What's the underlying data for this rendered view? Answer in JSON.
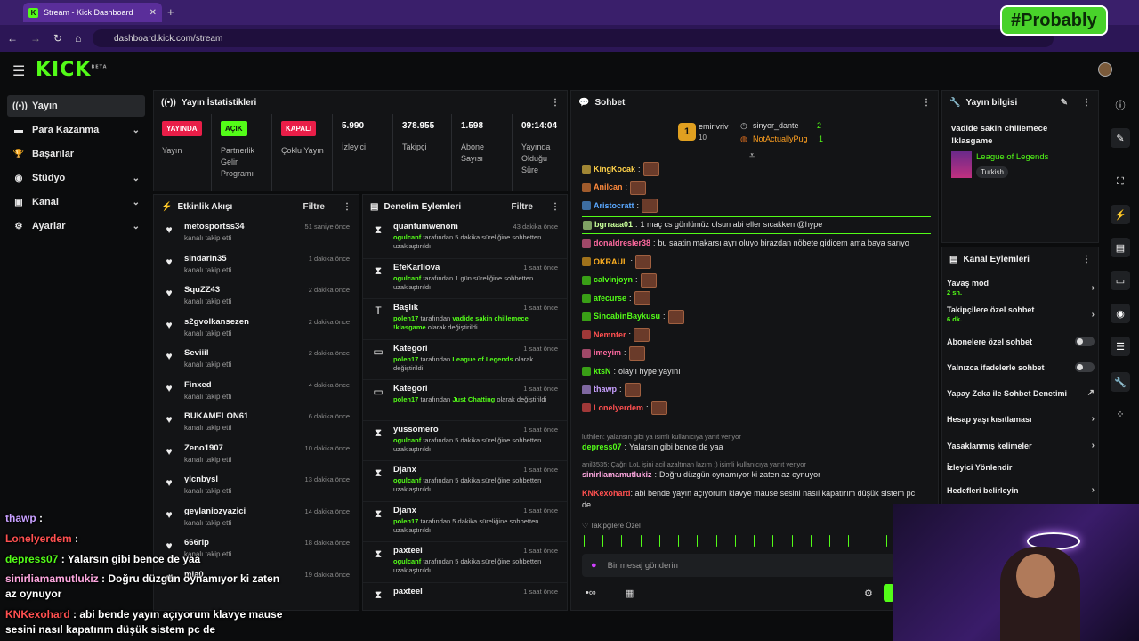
{
  "browser": {
    "tab_title": "Stream - Kick Dashboard",
    "url": "dashboard.kick.com/stream",
    "overlay_brand": "#Probably"
  },
  "app": {
    "logo": "KICK",
    "logo_sup": "BETA"
  },
  "nav": [
    {
      "label": "Yayın",
      "icon": "broadcast-icon",
      "active": true
    },
    {
      "label": "Para Kazanma",
      "icon": "money-icon",
      "chevron": true
    },
    {
      "label": "Başarılar",
      "icon": "trophy-icon"
    },
    {
      "label": "Stüdyo",
      "icon": "studio-icon",
      "chevron": true
    },
    {
      "label": "Kanal",
      "icon": "channel-icon",
      "chevron": true
    },
    {
      "label": "Ayarlar",
      "icon": "gear-icon",
      "chevron": true
    }
  ],
  "stats": {
    "title": "Yayın İstatistikleri",
    "items": [
      {
        "badge": "YAYINDA",
        "badge_color": "#e91e48",
        "label": "Yayın"
      },
      {
        "badge": "AÇIK",
        "badge_color": "#53fc18",
        "label": "Partnerlik Gelir Programı"
      },
      {
        "badge": "KAPALI",
        "badge_color": "#e91e48",
        "label": "Çoklu Yayın"
      },
      {
        "value": "5.990",
        "label": "İzleyici"
      },
      {
        "value": "378.955",
        "label": "Takipçi"
      },
      {
        "value": "1.598",
        "label": "Abone Sayısı"
      },
      {
        "value": "09:14:04",
        "label": "Yayında Olduğu Süre"
      }
    ]
  },
  "activity": {
    "title": "Etkinlik Akışı",
    "filter": "Filtre",
    "rows": [
      {
        "name": "metosportss34",
        "action": "kanalı takip etti",
        "time": "51 saniye önce"
      },
      {
        "name": "sindarin35",
        "action": "kanalı takip etti",
        "time": "1 dakika önce"
      },
      {
        "name": "SquZZ43",
        "action": "kanalı takip etti",
        "time": "2 dakika önce"
      },
      {
        "name": "s2gvolkansezen",
        "action": "kanalı takip etti",
        "time": "2 dakika önce"
      },
      {
        "name": "Seviiil",
        "action": "kanalı takip etti",
        "time": "2 dakika önce"
      },
      {
        "name": "Finxed",
        "action": "kanalı takip etti",
        "time": "4 dakika önce"
      },
      {
        "name": "BUKAMELON61",
        "action": "kanalı takip etti",
        "time": "6 dakika önce"
      },
      {
        "name": "Zeno1907",
        "action": "kanalı takip etti",
        "time": "10 dakika önce"
      },
      {
        "name": "ylcnbysl",
        "action": "kanalı takip etti",
        "time": "13 dakika önce"
      },
      {
        "name": "geylaniozyazici",
        "action": "kanalı takip etti",
        "time": "14 dakika önce"
      },
      {
        "name": "666rip",
        "action": "kanalı takip etti",
        "time": "18 dakika önce"
      },
      {
        "name": "mla0",
        "action": "",
        "time": "19 dakika önce"
      }
    ]
  },
  "moderation": {
    "title": "Denetim Eylemleri",
    "filter": "Filtre",
    "rows": [
      {
        "icon": "timeout-icon",
        "name": "quantumwenom",
        "actor": "ogulcanf",
        "desc": "tarafından 5 dakika süreliğine sohbetten uzaklaştırıldı",
        "time": "43 dakika önce"
      },
      {
        "icon": "timeout-icon",
        "name": "EfeKarliova",
        "actor": "ogulcanf",
        "desc": "tarafından 1 gün süreliğine sohbetten uzaklaştırıldı",
        "time": "1 saat önce"
      },
      {
        "icon": "title-icon",
        "name": "Başlık",
        "actor": "polen17",
        "desc": "tarafından",
        "value": "vadide sakin chillemece !klasgame",
        "desc2": "olarak değiştirildi",
        "time": "1 saat önce"
      },
      {
        "icon": "category-icon",
        "name": "Kategori",
        "actor": "polen17",
        "desc": "tarafından",
        "value": "League of Legends",
        "desc2": "olarak değiştirildi",
        "time": "1 saat önce"
      },
      {
        "icon": "category-icon",
        "name": "Kategori",
        "actor": "polen17",
        "desc": "tarafından",
        "value": "Just Chatting",
        "desc2": "olarak değiştirildi",
        "time": "1 saat önce"
      },
      {
        "icon": "timeout-icon",
        "name": "yussomero",
        "actor": "ogulcanf",
        "desc": "tarafından 5 dakika süreliğine sohbetten uzaklaştırıldı",
        "time": "1 saat önce"
      },
      {
        "icon": "timeout-icon",
        "name": "Djanx",
        "actor": "ogulcanf",
        "desc": "tarafından 5 dakika süreliğine sohbetten uzaklaştırıldı",
        "time": "1 saat önce"
      },
      {
        "icon": "timeout-icon",
        "name": "Djanx",
        "actor": "polen17",
        "desc": "tarafından 5 dakika süreliğine sohbetten uzaklaştırıldı",
        "time": "1 saat önce"
      },
      {
        "icon": "timeout-icon",
        "name": "paxteel",
        "actor": "ogulcanf",
        "desc": "tarafından 5 dakika süreliğine sohbetten uzaklaştırıldı",
        "time": "1 saat önce"
      },
      {
        "icon": "timeout-icon",
        "name": "paxteel",
        "actor": "",
        "desc": "",
        "time": "1 saat önce"
      }
    ]
  },
  "chat": {
    "title": "Sohbet",
    "leaderboard": {
      "first": {
        "name": "emirivriv",
        "rank": "1",
        "count": "10"
      },
      "second": {
        "name": "sinyor_dante",
        "count": "2"
      },
      "third": {
        "name": "NotActuallyPug",
        "count": "1"
      }
    },
    "messages": [
      {
        "user": "KingKocak",
        "color": "#ffd24a",
        "text": "",
        "emote": true
      },
      {
        "user": "Anilcan",
        "color": "#ff8a3c",
        "text": "",
        "emote": true
      },
      {
        "user": "Aristocratt",
        "color": "#5aa8ff",
        "text": "",
        "emote": true
      },
      {
        "user": "bgrraaa01",
        "color": "#c8ff9a",
        "text": "1 maç cs gönlümüz olsun abi eller sıcakken @hype",
        "highlight": true
      },
      {
        "user": "donaldresler38",
        "color": "#ff6aa0",
        "text": "bu saatin makarsı ayrı oluyo birazdan nöbete gidicem ama baya sarıyo"
      },
      {
        "user": "OKRAUL",
        "color": "#ffb020",
        "text": "",
        "emote": true
      },
      {
        "user": "calvinjoyn",
        "color": "#53fc18",
        "text": "",
        "emote": true
      },
      {
        "user": "afecurse",
        "color": "#53fc18",
        "text": "",
        "emote": true
      },
      {
        "user": "SincabinBaykusu",
        "color": "#53fc18",
        "text": "",
        "emote": true
      },
      {
        "user": "Nemnter",
        "color": "#ff5050",
        "text": "",
        "emote": true
      },
      {
        "user": "imeyim",
        "color": "#ff6aa0",
        "text": "",
        "emote": true
      },
      {
        "user": "ktsN",
        "color": "#53fc18",
        "text": "olaylı hype yayını"
      },
      {
        "user": "thawp",
        "color": "#c8a0ff",
        "text": "",
        "emote": true
      },
      {
        "user": "Lonelyerdem",
        "color": "#ff5050",
        "text": "",
        "emote": true
      }
    ],
    "reply1": "luthilen: yalansın gibi ya isimli kullanıcıya yanıt veriyor",
    "reply1_msg": {
      "user": "depress07",
      "color": "#53fc18",
      "text": "Yalarsın gibi bence de yaa"
    },
    "reply2": "anil3535: Çağrı LoL işini acil azaltman lazım :) isimli kullanıcıya yanıt veriyor",
    "reply2_msg": {
      "user": "sinirliamamutlukiz",
      "color": "#ffa8e0",
      "text": "Doğru düzgün oynamıyor ki zaten az oynuyor"
    },
    "last_msg": {
      "user": "KNKexohard",
      "color": "#ff5050",
      "text": "abi bende yayın açıyorum klavye mause sesini nasıl kapatırım düşük sistem pc de"
    },
    "followers_only": "Takipçilere Özel",
    "input_placeholder": "Bir mesaj gönderin"
  },
  "stream_info": {
    "title": "Yayın bilgisi",
    "stream_title": "vadide sakin chillemece !klasgame",
    "category": "League of Legends",
    "language": "Turkish"
  },
  "channel_actions": {
    "title": "Kanal Eylemleri",
    "items": [
      {
        "label": "Yavaş mod",
        "sub": "2 sn.",
        "type": "chevron"
      },
      {
        "label": "Takipçilere özel sohbet",
        "sub": "6 dk.",
        "type": "chevron"
      },
      {
        "label": "Abonelere özel sohbet",
        "type": "toggle"
      },
      {
        "label": "Yalnızca ifadelerle sohbet",
        "type": "toggle"
      },
      {
        "label": "Yapay Zeka ile Sohbet Denetimi",
        "type": "external"
      },
      {
        "label": "Hesap yaşı kısıtlaması",
        "type": "chevron"
      },
      {
        "label": "Yasaklanmış kelimeler",
        "type": "chevron"
      },
      {
        "label": "İzleyici Yönlendir",
        "type": "none"
      },
      {
        "label": "Hedefleri belirleyin",
        "type": "chevron"
      }
    ]
  },
  "overlay_chat": [
    {
      "user": "thawp",
      "color": "#c8a0ff",
      "text": ":"
    },
    {
      "user": "Lonelyerdem",
      "color": "#ff5050",
      "text": ":"
    },
    {
      "user": "depress07",
      "color": "#53fc18",
      "text": ": Yalarsın gibi bence de yaa"
    },
    {
      "user": "sinirliamamutlukiz",
      "color": "#ffa8e0",
      "text": ": Doğru düzgün oynamıyor ki zaten az oynuyor"
    },
    {
      "user": "KNKexohard",
      "color": "#ff5050",
      "text": ": abi bende yayın açıyorum klavye mause sesini nasıl kapatırım düşük sistem pc de"
    }
  ],
  "colors": {
    "accent": "#53fc18",
    "live": "#e91e48",
    "panel": "#131416"
  }
}
